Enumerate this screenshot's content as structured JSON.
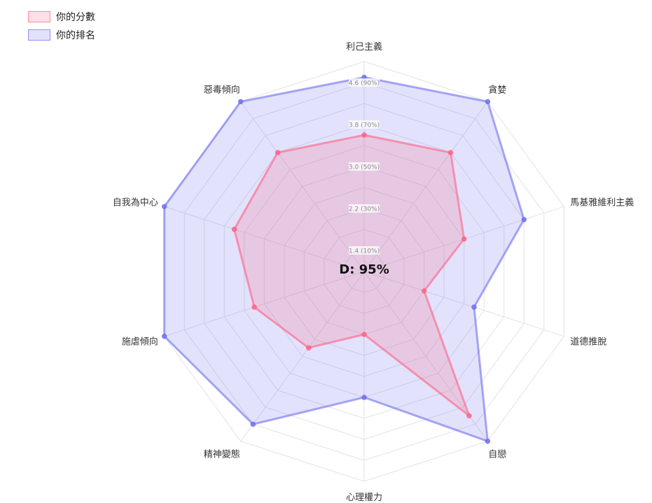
{
  "chart_data": {
    "type": "radar",
    "categories": [
      "利己主義",
      "貪婪",
      "馬基雅維利主義",
      "道德推脫",
      "自戀",
      "心理權力",
      "精神變態",
      "施虐傾向",
      "自我為中心",
      "惡毒傾向"
    ],
    "scale": {
      "min": 1.0,
      "max": 5.0,
      "ticks": [
        {
          "value": 1.4,
          "label": "1.4  (10%)"
        },
        {
          "value": 2.2,
          "label": "2.2  (30%)"
        },
        {
          "value": 3.0,
          "label": "3.0  (50%)"
        },
        {
          "value": 3.8,
          "label": "3.8  (70%)"
        },
        {
          "value": 4.6,
          "label": "4.6  (90%)"
        }
      ]
    },
    "center_label": "D: 95%",
    "series": [
      {
        "name": "你的分數",
        "color": "#ff6384",
        "values": [
          3.6,
          3.8,
          3.0,
          2.2,
          4.4,
          2.2,
          2.8,
          3.2,
          3.6,
          3.8
        ]
      },
      {
        "name": "你的排名",
        "color": "#6f6fef",
        "values": [
          4.7,
          5.0,
          4.2,
          3.2,
          5.0,
          3.4,
          4.6,
          5.0,
          5.0,
          5.0
        ]
      }
    ]
  }
}
